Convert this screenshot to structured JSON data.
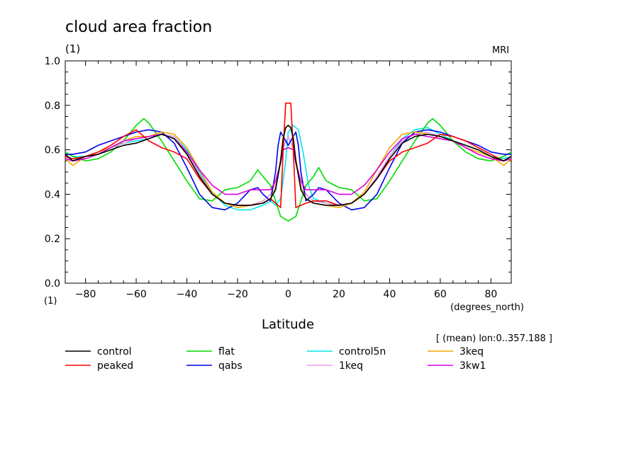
{
  "chart_data": {
    "type": "line",
    "title": "cloud area fraction",
    "y_unit_label": "(1)",
    "y_unit_label_bottom": "(1)",
    "source_label": "MRI",
    "xlabel": "Latitude",
    "x_unit_label": "(degrees_north)",
    "subtitle_note": "[ (mean) lon:0..357.188 ]",
    "xlim": [
      -88,
      88
    ],
    "ylim": [
      0.0,
      1.0
    ],
    "x_ticks": [
      -80,
      -60,
      -40,
      -20,
      0,
      20,
      40,
      60,
      80
    ],
    "x_tick_labels": [
      "−80",
      "−60",
      "−40",
      "−20",
      "0",
      "20",
      "40",
      "60",
      "80"
    ],
    "y_ticks": [
      0.0,
      0.2,
      0.4,
      0.6,
      0.8,
      1.0
    ],
    "y_tick_labels": [
      "0.0",
      "0.2",
      "0.4",
      "0.6",
      "0.8",
      "1.0"
    ],
    "legend_position": "bottom",
    "series": [
      {
        "name": "control",
        "color": "#000000",
        "x": [
          -88,
          -85,
          -80,
          -75,
          -70,
          -65,
          -60,
          -55,
          -50,
          -45,
          -40,
          -35,
          -30,
          -25,
          -20,
          -15,
          -10,
          -7,
          -5,
          -3,
          -2,
          -1,
          0,
          1,
          2,
          3,
          5,
          7,
          10,
          15,
          20,
          25,
          30,
          35,
          40,
          45,
          50,
          55,
          60,
          65,
          70,
          75,
          80,
          85,
          88
        ],
        "y": [
          0.58,
          0.55,
          0.57,
          0.58,
          0.6,
          0.62,
          0.63,
          0.65,
          0.67,
          0.65,
          0.58,
          0.48,
          0.4,
          0.36,
          0.35,
          0.35,
          0.36,
          0.38,
          0.42,
          0.55,
          0.65,
          0.7,
          0.71,
          0.7,
          0.65,
          0.55,
          0.42,
          0.38,
          0.36,
          0.35,
          0.35,
          0.36,
          0.4,
          0.47,
          0.56,
          0.63,
          0.66,
          0.67,
          0.66,
          0.64,
          0.62,
          0.6,
          0.57,
          0.55,
          0.57
        ]
      },
      {
        "name": "peaked",
        "color": "#ff0000",
        "x": [
          -88,
          -85,
          -80,
          -75,
          -70,
          -65,
          -60,
          -55,
          -50,
          -45,
          -40,
          -35,
          -30,
          -25,
          -20,
          -15,
          -10,
          -7,
          -5,
          -3,
          -2,
          -1,
          0,
          1,
          2,
          3,
          5,
          7,
          10,
          15,
          20,
          25,
          30,
          35,
          40,
          45,
          50,
          55,
          60,
          65,
          70,
          75,
          80,
          85,
          88
        ],
        "y": [
          0.57,
          0.56,
          0.57,
          0.59,
          0.62,
          0.66,
          0.69,
          0.64,
          0.61,
          0.59,
          0.56,
          0.47,
          0.4,
          0.36,
          0.35,
          0.35,
          0.36,
          0.38,
          0.36,
          0.34,
          0.6,
          0.81,
          0.81,
          0.81,
          0.6,
          0.34,
          0.35,
          0.36,
          0.37,
          0.37,
          0.35,
          0.36,
          0.4,
          0.47,
          0.55,
          0.59,
          0.61,
          0.63,
          0.67,
          0.66,
          0.64,
          0.61,
          0.58,
          0.55,
          0.57
        ]
      },
      {
        "name": "flat",
        "color": "#00dd00",
        "x": [
          -88,
          -85,
          -80,
          -75,
          -70,
          -65,
          -60,
          -57,
          -55,
          -50,
          -45,
          -40,
          -35,
          -30,
          -25,
          -20,
          -15,
          -12,
          -10,
          -7,
          -5,
          -3,
          0,
          3,
          5,
          7,
          10,
          12,
          15,
          20,
          25,
          30,
          35,
          40,
          45,
          50,
          55,
          57,
          60,
          65,
          70,
          75,
          80,
          85,
          88
        ],
        "y": [
          0.59,
          0.57,
          0.55,
          0.56,
          0.59,
          0.64,
          0.71,
          0.74,
          0.72,
          0.64,
          0.55,
          0.46,
          0.38,
          0.37,
          0.42,
          0.43,
          0.46,
          0.51,
          0.48,
          0.44,
          0.37,
          0.3,
          0.28,
          0.3,
          0.37,
          0.44,
          0.48,
          0.52,
          0.46,
          0.43,
          0.42,
          0.37,
          0.38,
          0.46,
          0.55,
          0.64,
          0.72,
          0.74,
          0.71,
          0.64,
          0.59,
          0.56,
          0.55,
          0.57,
          0.59
        ]
      },
      {
        "name": "qabs",
        "color": "#0000ee",
        "x": [
          -88,
          -85,
          -80,
          -75,
          -70,
          -65,
          -60,
          -55,
          -50,
          -45,
          -40,
          -35,
          -30,
          -25,
          -20,
          -15,
          -12,
          -10,
          -7,
          -5,
          -4,
          -3,
          0,
          3,
          4,
          5,
          7,
          10,
          12,
          15,
          20,
          25,
          30,
          35,
          40,
          45,
          50,
          55,
          60,
          65,
          70,
          75,
          80,
          85,
          88
        ],
        "y": [
          0.58,
          0.58,
          0.59,
          0.62,
          0.64,
          0.66,
          0.68,
          0.69,
          0.68,
          0.63,
          0.52,
          0.4,
          0.34,
          0.33,
          0.36,
          0.42,
          0.43,
          0.4,
          0.37,
          0.5,
          0.62,
          0.68,
          0.62,
          0.68,
          0.62,
          0.5,
          0.37,
          0.4,
          0.43,
          0.42,
          0.36,
          0.33,
          0.34,
          0.4,
          0.52,
          0.63,
          0.68,
          0.69,
          0.68,
          0.66,
          0.64,
          0.62,
          0.59,
          0.58,
          0.58
        ]
      },
      {
        "name": "control5n",
        "color": "#00e8e8",
        "x": [
          -88,
          -85,
          -80,
          -75,
          -70,
          -65,
          -60,
          -55,
          -50,
          -45,
          -40,
          -35,
          -30,
          -25,
          -20,
          -15,
          -10,
          -7,
          -5,
          -3,
          -1,
          0,
          2,
          4,
          6,
          8,
          10,
          15,
          20,
          25,
          30,
          35,
          40,
          45,
          50,
          55,
          60,
          65,
          70,
          75,
          80,
          85,
          88
        ],
        "y": [
          0.59,
          0.57,
          0.57,
          0.59,
          0.61,
          0.63,
          0.64,
          0.65,
          0.67,
          0.66,
          0.6,
          0.5,
          0.41,
          0.35,
          0.33,
          0.33,
          0.35,
          0.37,
          0.35,
          0.38,
          0.55,
          0.68,
          0.71,
          0.69,
          0.58,
          0.44,
          0.38,
          0.36,
          0.35,
          0.36,
          0.4,
          0.47,
          0.57,
          0.65,
          0.69,
          0.7,
          0.67,
          0.64,
          0.62,
          0.6,
          0.57,
          0.56,
          0.57
        ]
      },
      {
        "name": "1keq",
        "color": "#e899e0",
        "x": [
          -88,
          -85,
          -80,
          -75,
          -70,
          -65,
          -60,
          -55,
          -50,
          -45,
          -40,
          -35,
          -30,
          -25,
          -20,
          -15,
          -10,
          -7,
          -5,
          -3,
          -2,
          0,
          2,
          3,
          5,
          7,
          10,
          15,
          20,
          25,
          30,
          35,
          40,
          45,
          50,
          55,
          60,
          65,
          70,
          75,
          80,
          85,
          88
        ],
        "y": [
          0.57,
          0.55,
          0.57,
          0.59,
          0.61,
          0.63,
          0.65,
          0.66,
          0.67,
          0.66,
          0.59,
          0.49,
          0.4,
          0.36,
          0.35,
          0.35,
          0.37,
          0.4,
          0.45,
          0.55,
          0.61,
          0.66,
          0.61,
          0.55,
          0.45,
          0.4,
          0.37,
          0.36,
          0.35,
          0.36,
          0.4,
          0.48,
          0.57,
          0.64,
          0.67,
          0.68,
          0.66,
          0.64,
          0.62,
          0.6,
          0.57,
          0.55,
          0.57
        ]
      },
      {
        "name": "3keq",
        "color": "#f0a800",
        "x": [
          -88,
          -85,
          -80,
          -75,
          -70,
          -65,
          -60,
          -55,
          -50,
          -45,
          -40,
          -35,
          -30,
          -25,
          -20,
          -15,
          -10,
          -7,
          -5,
          -3,
          -2,
          -1,
          0,
          1,
          2,
          3,
          5,
          7,
          10,
          15,
          20,
          25,
          30,
          35,
          40,
          45,
          50,
          55,
          60,
          65,
          70,
          75,
          80,
          85,
          88
        ],
        "y": [
          0.56,
          0.53,
          0.57,
          0.59,
          0.61,
          0.64,
          0.66,
          0.66,
          0.68,
          0.67,
          0.61,
          0.51,
          0.41,
          0.36,
          0.34,
          0.35,
          0.36,
          0.38,
          0.43,
          0.56,
          0.66,
          0.7,
          0.71,
          0.7,
          0.66,
          0.56,
          0.43,
          0.38,
          0.36,
          0.35,
          0.34,
          0.36,
          0.41,
          0.51,
          0.61,
          0.67,
          0.68,
          0.67,
          0.66,
          0.64,
          0.61,
          0.59,
          0.57,
          0.53,
          0.56
        ]
      },
      {
        "name": "3kw1",
        "color": "#dd00dd",
        "x": [
          -88,
          -85,
          -80,
          -75,
          -70,
          -65,
          -60,
          -55,
          -50,
          -45,
          -40,
          -35,
          -30,
          -25,
          -20,
          -15,
          -10,
          -7,
          -5,
          -3,
          -2,
          0,
          2,
          3,
          5,
          7,
          10,
          15,
          20,
          25,
          30,
          35,
          40,
          45,
          50,
          55,
          60,
          65,
          70,
          75,
          80,
          85,
          88
        ],
        "y": [
          0.56,
          0.55,
          0.56,
          0.58,
          0.61,
          0.64,
          0.65,
          0.66,
          0.67,
          0.65,
          0.59,
          0.51,
          0.44,
          0.4,
          0.4,
          0.42,
          0.42,
          0.42,
          0.46,
          0.54,
          0.6,
          0.61,
          0.6,
          0.54,
          0.46,
          0.42,
          0.42,
          0.42,
          0.4,
          0.4,
          0.44,
          0.51,
          0.59,
          0.65,
          0.67,
          0.66,
          0.65,
          0.64,
          0.61,
          0.58,
          0.56,
          0.55,
          0.56
        ]
      }
    ]
  }
}
